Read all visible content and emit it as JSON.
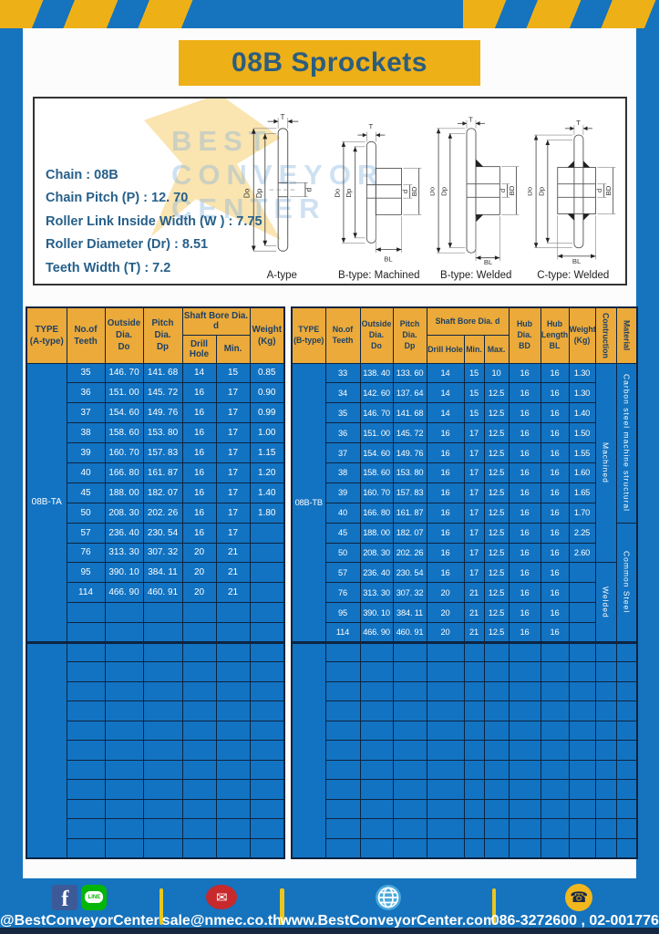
{
  "page": {
    "title": "08B Sprockets"
  },
  "specs": {
    "lines": [
      "Chain  : 08B",
      "Chain Pitch (P)  :  12. 70",
      "Roller Link Inside Width (W )  :  7.75",
      "Roller Diameter (Dr)  : 8.51",
      "Teeth Width (T)  :  7.2"
    ]
  },
  "diagrams": {
    "labels": [
      "A-type",
      "B-type: Machined",
      "B-type: Welded",
      "C-type: Welded"
    ],
    "dims": {
      "t": "T",
      "do": "Do",
      "dp": "Dp",
      "d": "d",
      "bd": "BD",
      "bl": "BL"
    },
    "watermark": [
      "BEST",
      "CONVEYOR",
      "CENTER"
    ]
  },
  "left_table": {
    "type_label": "08B-TA",
    "header": {
      "type": [
        "TYPE",
        "(A-type)"
      ],
      "teeth": [
        "No.of",
        "Teeth"
      ],
      "outside": [
        "Outside",
        "Dia.",
        "Do"
      ],
      "pitch": [
        "Pitch Dia.",
        "Dp"
      ],
      "bore_group": "Shaft Bore Dia. d",
      "drill": "Drill Hole",
      "min": "Min.",
      "weight": [
        "Weight",
        "(Kg)"
      ]
    },
    "rows": [
      [
        "35",
        "146. 70",
        "141. 68",
        "14",
        "15",
        "0.85"
      ],
      [
        "36",
        "151. 00",
        "145. 72",
        "16",
        "17",
        "0.90"
      ],
      [
        "37",
        "154. 60",
        "149. 76",
        "16",
        "17",
        "0.99"
      ],
      [
        "38",
        "158. 60",
        "153. 80",
        "16",
        "17",
        "1.00"
      ],
      [
        "39",
        "160. 70",
        "157. 83",
        "16",
        "17",
        "1.15"
      ],
      [
        "40",
        "166. 80",
        "161. 87",
        "16",
        "17",
        "1.20"
      ],
      [
        "45",
        "188. 00",
        "182. 07",
        "16",
        "17",
        "1.40"
      ],
      [
        "50",
        "208. 30",
        "202. 26",
        "16",
        "17",
        "1.80"
      ],
      [
        "57",
        "236. 40",
        "230. 54",
        "16",
        "17",
        ""
      ],
      [
        "76",
        "313. 30",
        "307. 32",
        "20",
        "21",
        ""
      ],
      [
        "95",
        "390. 10",
        "384. 11",
        "20",
        "21",
        ""
      ],
      [
        "114",
        "466. 90",
        "460. 91",
        "20",
        "21",
        ""
      ]
    ],
    "group1_total_rows": 14,
    "group2_rows": 11
  },
  "right_table": {
    "type_label": "08B-TB",
    "header": {
      "type": [
        "TYPE",
        "(B-type)"
      ],
      "teeth": [
        "No.of",
        "Teeth"
      ],
      "outside": [
        "Outside",
        "Dia.",
        "Do"
      ],
      "pitch": [
        "Pitch Dia.",
        "Dp"
      ],
      "bore_group": "Shaft Bore Dia. d",
      "drill": "Drill Hole",
      "min": "Min.",
      "max": "Max.",
      "hub_dia": [
        "Hub Dia.",
        "BD"
      ],
      "hub_len": [
        "Hub",
        "Length",
        "BL"
      ],
      "weight": [
        "Weight",
        "(Kg)"
      ],
      "construction": "Contruction",
      "material": "Material"
    },
    "rows": [
      [
        "33",
        "138. 40",
        "133. 60",
        "14",
        "15",
        "10",
        "16",
        "16",
        "1.30"
      ],
      [
        "34",
        "142. 60",
        "137. 64",
        "14",
        "15",
        "12.5",
        "16",
        "16",
        "1.30"
      ],
      [
        "35",
        "146. 70",
        "141. 68",
        "14",
        "15",
        "12.5",
        "16",
        "16",
        "1.40"
      ],
      [
        "36",
        "151. 00",
        "145. 72",
        "16",
        "17",
        "12.5",
        "16",
        "16",
        "1.50"
      ],
      [
        "37",
        "154. 60",
        "149. 76",
        "16",
        "17",
        "12.5",
        "16",
        "16",
        "1.55"
      ],
      [
        "38",
        "158. 60",
        "153. 80",
        "16",
        "17",
        "12.5",
        "16",
        "16",
        "1.60"
      ],
      [
        "39",
        "160. 70",
        "157. 83",
        "16",
        "17",
        "12.5",
        "16",
        "16",
        "1.65"
      ],
      [
        "40",
        "166. 80",
        "161. 87",
        "16",
        "17",
        "12.5",
        "16",
        "16",
        "1.70"
      ],
      [
        "45",
        "188. 00",
        "182. 07",
        "16",
        "17",
        "12.5",
        "16",
        "16",
        "2.25"
      ],
      [
        "50",
        "208. 30",
        "202. 26",
        "16",
        "17",
        "12.5",
        "16",
        "16",
        "2.60"
      ],
      [
        "57",
        "236. 40",
        "230. 54",
        "16",
        "17",
        "12.5",
        "16",
        "16",
        ""
      ],
      [
        "76",
        "313. 30",
        "307. 32",
        "20",
        "21",
        "12.5",
        "16",
        "16",
        ""
      ],
      [
        "95",
        "390. 10",
        "384. 11",
        "20",
        "21",
        "12.5",
        "16",
        "16",
        ""
      ],
      [
        "114",
        "466. 90",
        "460. 91",
        "20",
        "21",
        "12.5",
        "16",
        "16",
        ""
      ]
    ],
    "construction_groups": [
      {
        "label": "Machined",
        "span": 10
      },
      {
        "label": "Welded",
        "span": 4
      }
    ],
    "material_groups": [
      {
        "label": "Carbon steel  machine structural",
        "span": 8
      },
      {
        "label": "Common Steel",
        "span": 6
      }
    ],
    "group1_total_rows": 14,
    "group2_rows": 11
  },
  "footer": {
    "facebook_letter": "f",
    "line_text": "LINE",
    "social_label": "@BestConveyorCenter",
    "email_glyph": "✉",
    "email": "sale@nmec.co.th",
    "website": "www.BestConveyorCenter.com",
    "phone_glyph": "☎",
    "phones": "086-3272600 , 02-0017766"
  },
  "colors": {
    "page_blue": "#1673bd",
    "cell_blue": "#1273c2",
    "banner_yellow": "#eeb017",
    "header_amber": "#ebaa3a",
    "border_navy": "#0e2441",
    "title_blue": "#2c5d7e"
  }
}
